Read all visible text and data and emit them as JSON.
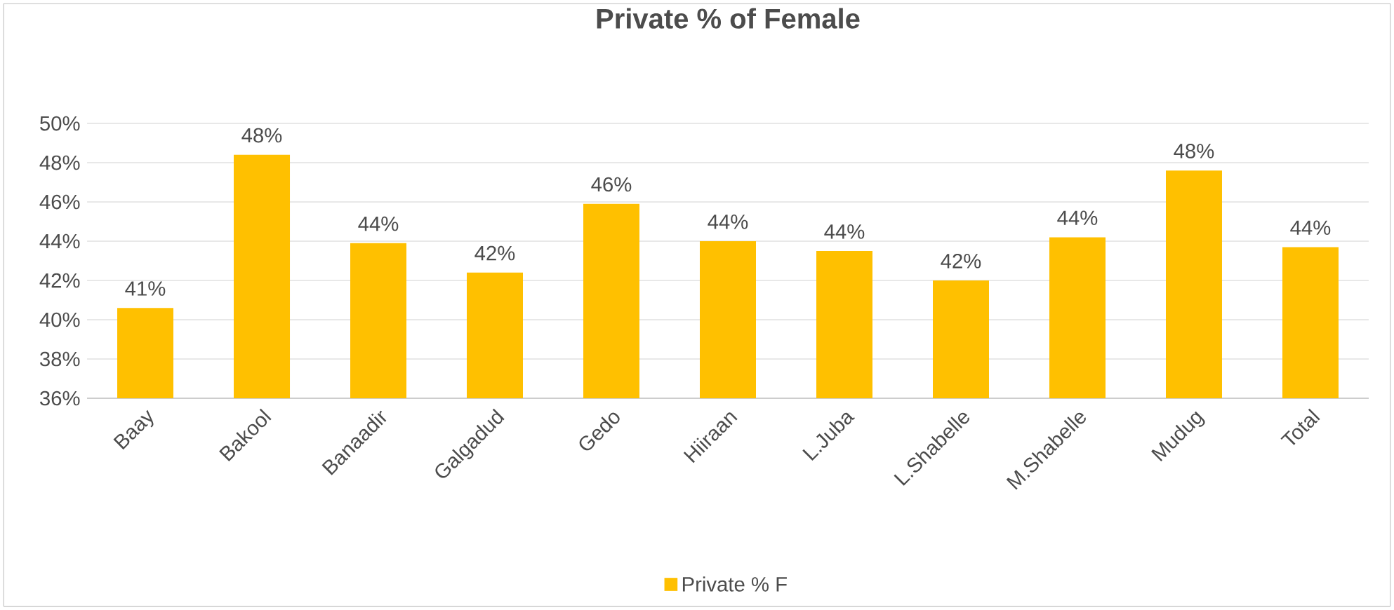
{
  "chart_data": {
    "type": "bar",
    "title": "Private % of Female",
    "categories": [
      "Baay",
      "Bakool",
      "Banaadir",
      "Galgadud",
      "Gedo",
      "Hiiraan",
      "L.Juba",
      "L.Shabelle",
      "M.Shabelle",
      "Mudug",
      "Total"
    ],
    "series": [
      {
        "name": "Private % F",
        "color": "#ffc000",
        "values": [
          40.6,
          48.4,
          43.9,
          42.4,
          45.9,
          44.0,
          43.5,
          42.0,
          44.2,
          47.6,
          43.7
        ],
        "value_labels": [
          "41%",
          "48%",
          "44%",
          "42%",
          "46%",
          "44%",
          "44%",
          "42%",
          "44%",
          "48%",
          "44%"
        ]
      }
    ],
    "ylim": [
      36,
      50
    ],
    "yticks": [
      {
        "value": 36,
        "label": "36%"
      },
      {
        "value": 38,
        "label": "38%"
      },
      {
        "value": 40,
        "label": "40%"
      },
      {
        "value": 42,
        "label": "42%"
      },
      {
        "value": 44,
        "label": "44%"
      },
      {
        "value": 46,
        "label": "46%"
      },
      {
        "value": 48,
        "label": "48%"
      },
      {
        "value": 50,
        "label": "50%"
      }
    ],
    "grid": "y",
    "legend": "bottom"
  }
}
